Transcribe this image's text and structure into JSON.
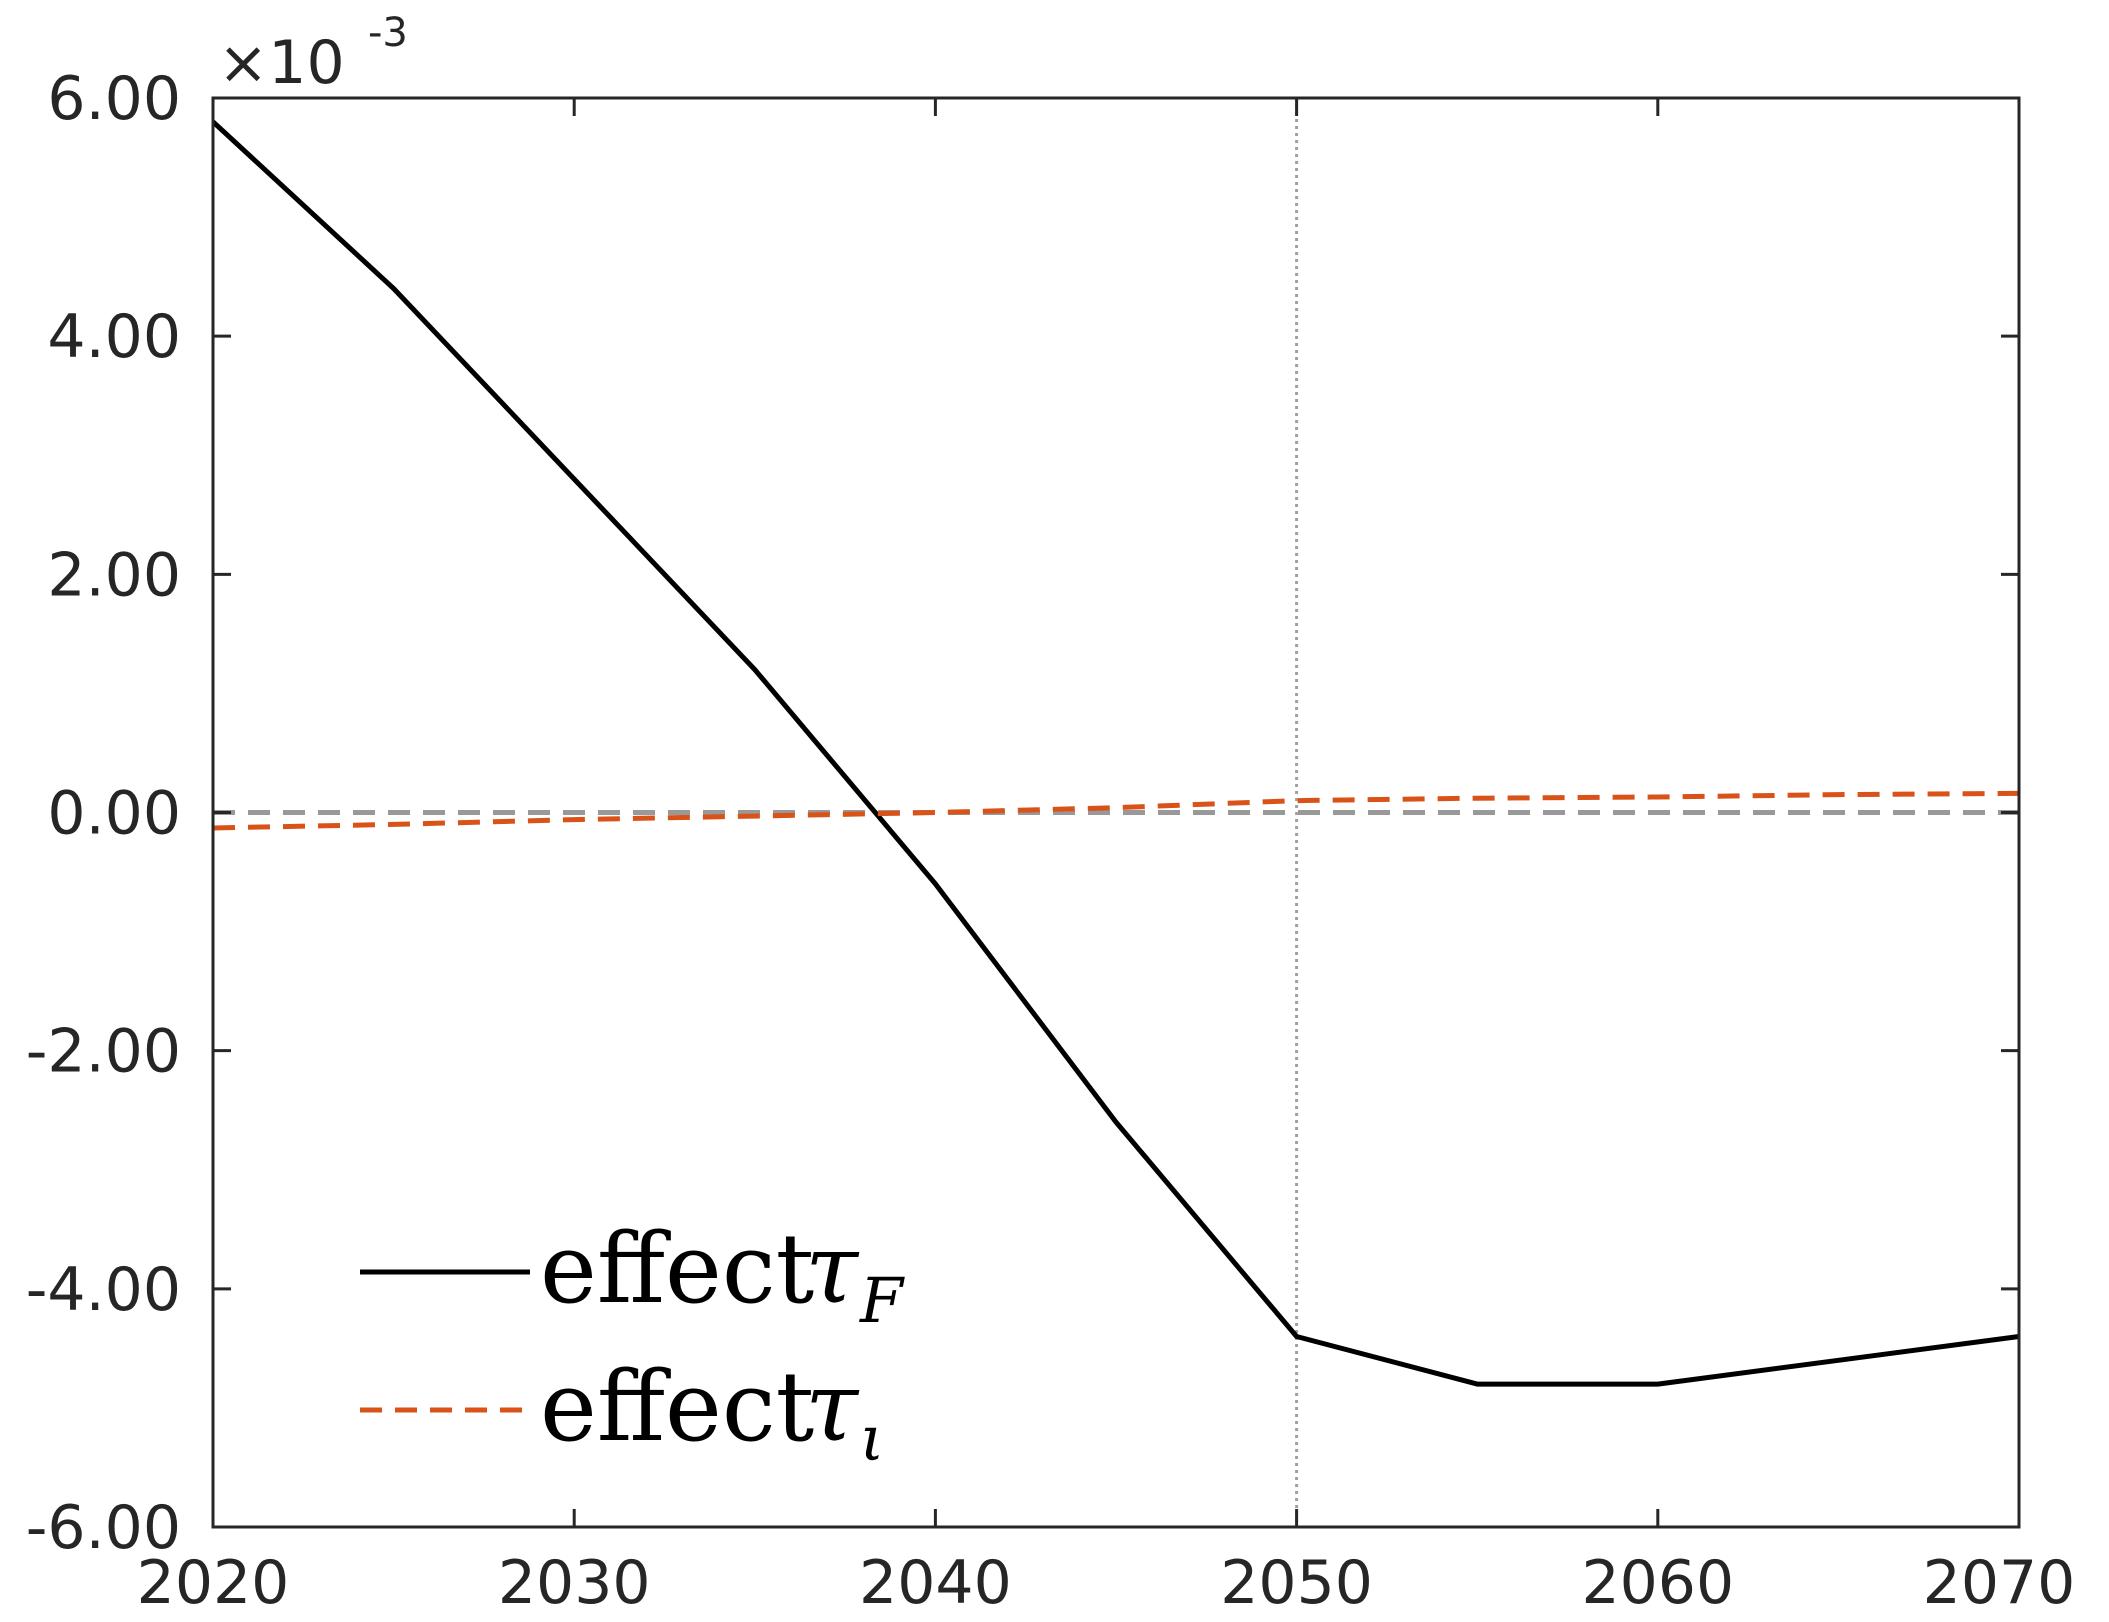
{
  "chart_data": {
    "type": "line",
    "title": "",
    "xlabel": "",
    "ylabel": "",
    "xlim": [
      2020,
      2070
    ],
    "ylim": [
      -0.006,
      0.006
    ],
    "y_exponent_label": {
      "base": "×10",
      "exponent": "-3"
    },
    "xticks": [
      2020,
      2030,
      2040,
      2050,
      2060,
      2070
    ],
    "xtick_labels": [
      "2020",
      "2030",
      "2040",
      "2050",
      "2060",
      "2070"
    ],
    "yticks": [
      -0.006,
      -0.004,
      -0.002,
      0,
      0.002,
      0.004,
      0.006
    ],
    "ytick_labels": [
      "-6.00",
      "-4.00",
      "-2.00",
      "0.00",
      "2.00",
      "4.00",
      "6.00"
    ],
    "grid": false,
    "reference_lines": [
      {
        "orientation": "vertical",
        "x": 2050,
        "style": "dotted",
        "color": "#a0a0a0"
      },
      {
        "orientation": "horizontal",
        "y": 0,
        "style": "dashed",
        "color": "#999999"
      }
    ],
    "legend_position": "bottom-left",
    "series": [
      {
        "name": "effect",
        "symbol": "τ",
        "subscript": "F",
        "color": "#000000",
        "style": "solid",
        "x": [
          2020,
          2025,
          2030,
          2035,
          2040,
          2045,
          2050,
          2055,
          2060,
          2065,
          2070
        ],
        "values": [
          0.0058,
          0.0044,
          0.0028,
          0.0012,
          -0.0006,
          -0.0026,
          -0.0044,
          -0.0048,
          -0.0048,
          -0.0046,
          -0.0044
        ]
      },
      {
        "name": "effect",
        "symbol": "τ",
        "subscript": "ι",
        "color": "#d95319",
        "style": "dashed",
        "x": [
          2020,
          2025,
          2030,
          2035,
          2040,
          2045,
          2050,
          2055,
          2060,
          2065,
          2070
        ],
        "values": [
          -0.00013,
          -0.0001,
          -6e-05,
          -3e-05,
          0.0,
          4e-05,
          0.0001,
          0.00012,
          0.00013,
          0.00015,
          0.00016
        ]
      }
    ]
  }
}
